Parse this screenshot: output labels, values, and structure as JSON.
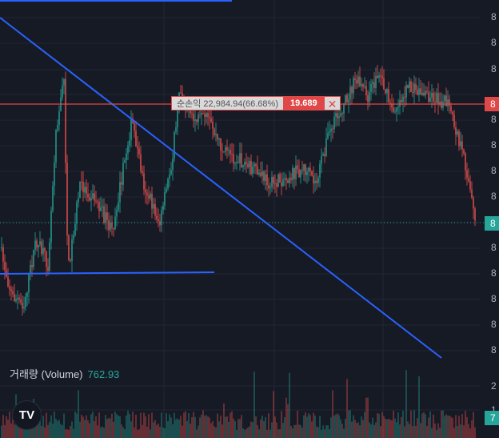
{
  "price_axis": {
    "labels": [
      "8",
      "8",
      "8",
      "8",
      "8",
      "8",
      "8",
      "8",
      "8",
      "8",
      "8",
      "8",
      "8",
      "8"
    ]
  },
  "price_badges": {
    "position_line": "8",
    "last_price": "8"
  },
  "position_tooltip": {
    "text": "순손익 22,984.94(66.68%)",
    "quantity": "19.689",
    "close_symbol": "✕"
  },
  "volume": {
    "title": "거래량 (Volume)",
    "value": "762.93",
    "axis_labels": [
      "2",
      "1"
    ],
    "badge": "7"
  },
  "logo": "TV",
  "colors": {
    "up": "#26a69a",
    "down": "#ef5350",
    "trendline": "#2962ff",
    "position_line": "#e04848",
    "background": "#161a25"
  }
}
